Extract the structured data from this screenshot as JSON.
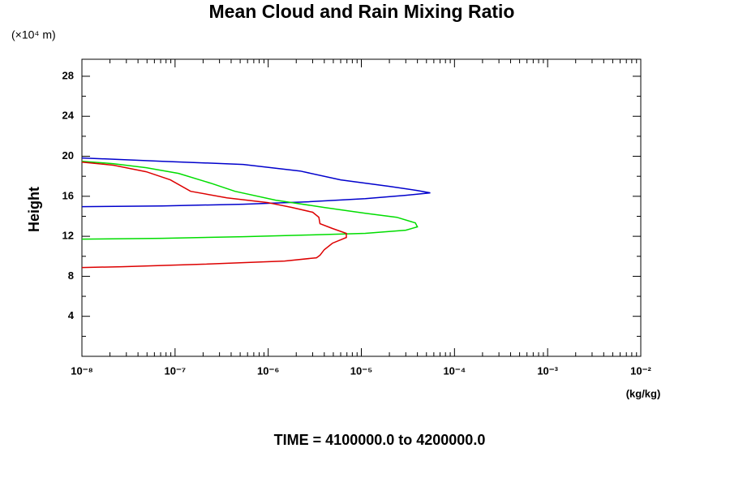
{
  "chart_data": {
    "type": "line",
    "title": "Mean Cloud and Rain Mixing Ratio",
    "y_unit": "(×10⁴ m)",
    "ylabel": "Height",
    "x_unit": "(kg/kg)",
    "footer": "TIME = 4100000.0 to 4200000.0",
    "xscale": "log",
    "xlim": [
      1e-08,
      0.01
    ],
    "xticks": [
      {
        "value": 1e-08,
        "label": "10⁻⁸"
      },
      {
        "value": 1e-07,
        "label": "10⁻⁷"
      },
      {
        "value": 1e-06,
        "label": "10⁻⁶"
      },
      {
        "value": 1e-05,
        "label": "10⁻⁵"
      },
      {
        "value": 0.0001,
        "label": "10⁻⁴"
      },
      {
        "value": 0.001,
        "label": "10⁻³"
      },
      {
        "value": 0.01,
        "label": "10⁻²"
      }
    ],
    "ylim": [
      0,
      29.7
    ],
    "yticks": [
      4,
      8,
      12,
      16,
      20,
      24,
      28
    ],
    "series": [
      {
        "color": "#0000cc",
        "x": [
          1e-08,
          7.3e-08,
          5.4e-07,
          2.2e-06,
          6e-06,
          2e-05,
          4e-05,
          5.5e-05,
          3e-05,
          1.1e-05,
          2.7e-06,
          5.4e-07,
          7.3e-08,
          1e-08
        ],
        "values": [
          19.83,
          19.5,
          19.18,
          18.53,
          17.64,
          16.99,
          16.58,
          16.34,
          16.1,
          15.77,
          15.45,
          15.21,
          15.04,
          14.96
        ]
      },
      {
        "color": "#00dd00",
        "x": [
          1e-08,
          2.2e-08,
          4.9e-08,
          1.09e-07,
          2.4e-07,
          4.4e-07,
          1.2e-06,
          4e-06,
          1.1e-05,
          2.4e-05,
          3.8e-05,
          4e-05,
          3e-05,
          1.1e-05,
          2.7e-06,
          5.4e-07,
          7.3e-08,
          1e-08
        ],
        "values": [
          19.5,
          19.26,
          18.86,
          18.29,
          17.32,
          16.5,
          15.61,
          14.88,
          14.31,
          13.9,
          13.34,
          12.94,
          12.61,
          12.29,
          12.13,
          11.96,
          11.8,
          11.72
        ]
      },
      {
        "color": "#dd0000",
        "x": [
          1e-08,
          2.2e-08,
          4.9e-08,
          8.9e-08,
          1.47e-07,
          3.6e-07,
          9.9e-07,
          1.8e-06,
          3e-06,
          3.5e-06,
          3.6e-06,
          4.9e-06,
          6.9e-06,
          6.9e-06,
          4.9e-06,
          4e-06,
          3.6e-06,
          3.3e-06,
          1.5e-06,
          2e-07,
          2.7e-08,
          1e-08
        ],
        "values": [
          19.42,
          19.1,
          18.45,
          17.64,
          16.5,
          15.85,
          15.37,
          14.88,
          14.4,
          13.9,
          13.26,
          12.78,
          12.29,
          11.88,
          11.31,
          10.66,
          10.1,
          9.85,
          9.53,
          9.21,
          8.96,
          8.88
        ]
      }
    ]
  }
}
